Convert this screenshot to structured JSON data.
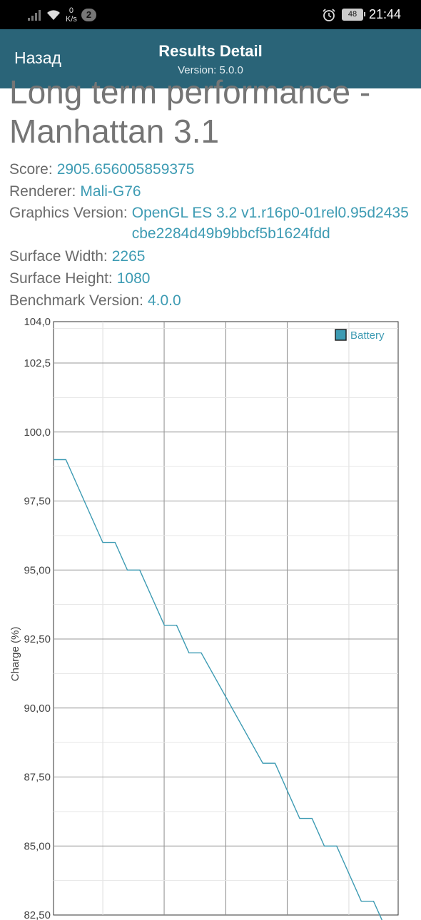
{
  "status_bar": {
    "net_speed_value": "0",
    "net_speed_unit": "K/s",
    "notification_count": "2",
    "battery_level": "48",
    "time": "21:44"
  },
  "app_bar": {
    "back_label": "Назад",
    "title": "Results Detail",
    "subtitle": "Version: 5.0.0"
  },
  "result": {
    "title": "Long term performance - Manhattan 3.1",
    "fields": [
      {
        "label": "Score:",
        "value": "2905.656005859375"
      },
      {
        "label": "Renderer:",
        "value": "Mali-G76"
      },
      {
        "label": "Graphics Version:",
        "value": "OpenGL ES 3.2 v1.r16p0-01rel0.95d2435cbe2284d49b9bbcf5b1624fdd"
      },
      {
        "label": "Surface Width:",
        "value": "2265"
      },
      {
        "label": "Surface Height:",
        "value": "1080"
      },
      {
        "label": "Benchmark Version:",
        "value": "4.0.0"
      }
    ]
  },
  "chart_data": {
    "type": "line",
    "ylabel": "Charge (%)",
    "y_ticks": [
      "104,0",
      "102,5",
      "100,0",
      "97,50",
      "95,00",
      "92,50",
      "90,00",
      "87,50",
      "85,00",
      "82,50"
    ],
    "y_tick_values": [
      104.0,
      102.5,
      100.0,
      97.5,
      95.0,
      92.5,
      90.0,
      87.5,
      85.0,
      82.5
    ],
    "ylim": [
      82.5,
      104.0
    ],
    "legend_position": "top-right",
    "grid": true,
    "series": [
      {
        "name": "Battery",
        "color": "#3d9bb3",
        "points": [
          [
            0,
            99
          ],
          [
            1,
            99
          ],
          [
            4,
            96
          ],
          [
            5,
            96
          ],
          [
            6,
            95
          ],
          [
            7,
            95
          ],
          [
            9,
            93
          ],
          [
            10,
            93
          ],
          [
            11,
            92
          ],
          [
            12,
            92
          ],
          [
            17,
            88
          ],
          [
            18,
            88
          ],
          [
            20,
            86
          ],
          [
            21,
            86
          ],
          [
            22,
            85
          ],
          [
            23,
            85
          ],
          [
            25,
            83
          ],
          [
            26,
            83
          ],
          [
            27,
            82
          ]
        ]
      }
    ]
  }
}
